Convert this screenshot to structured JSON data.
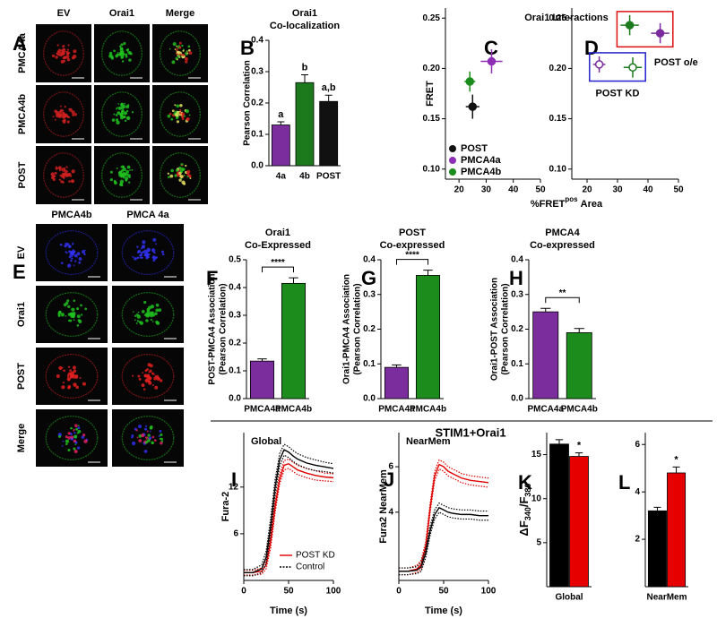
{
  "panel_letters": [
    "A",
    "B",
    "C",
    "D",
    "E",
    "F",
    "G",
    "H",
    "I",
    "J",
    "K",
    "L"
  ],
  "image_panels": [
    {
      "columns": [
        "EV",
        "Orai1",
        "Merge"
      ],
      "rows": [
        "PMCA4a",
        "PMCA4b",
        "POST"
      ]
    },
    {
      "columns": [
        "PMCA4b",
        "PMCA 4a"
      ],
      "rows": [
        "EV",
        "Orai1",
        "POST",
        "Merge"
      ]
    }
  ],
  "figure_label": "STIM1+Orai1",
  "chart_data": [
    {
      "type": "bar",
      "title": "Orai1",
      "subtitle": "Co-localization",
      "y_label": "Pearson Correlation",
      "categories": [
        "4a",
        "4b",
        "POST"
      ],
      "values": [
        0.13,
        0.265,
        0.205
      ],
      "errors": [
        0.01,
        0.025,
        0.02
      ],
      "colors": [
        "#7b2d9e",
        "#1c7a1c",
        "#111111"
      ],
      "annotations": [
        "a",
        "b",
        "a,b"
      ],
      "ylim": [
        0,
        0.4
      ],
      "yticks": [
        {
          "value": 0,
          "label": "0.0"
        },
        0.1,
        0.2,
        0.3,
        0.4
      ]
    },
    {
      "type": "scatter",
      "title": "Orai1 Interactions",
      "x_label": "%FRET",
      "x_label_sup": "pos",
      "x_label_end": "Area",
      "y_label": "FRET",
      "xlim": [
        15,
        50
      ],
      "xticks": [
        20,
        30,
        40,
        50
      ],
      "ylim": [
        0.09,
        0.26
      ],
      "yticks": [
        {
          "value": 0.1,
          "label": "0.10"
        },
        0.15,
        {
          "value": 0.2,
          "label": "0.20"
        },
        0.25
      ],
      "legend": "lower left",
      "series": [
        {
          "name": "POST",
          "color": "#111111",
          "x": [
            25
          ],
          "values": [
            0.162
          ],
          "xerr": [
            2.5
          ],
          "errors": [
            0.012
          ]
        },
        {
          "name": "PMCA4a",
          "color": "#8e2fb8",
          "x": [
            32
          ],
          "values": [
            0.207
          ],
          "xerr": [
            4
          ],
          "errors": [
            0.012
          ]
        },
        {
          "name": "PMCA4b",
          "color": "#1c8c1c",
          "x": [
            24
          ],
          "values": [
            0.187
          ],
          "xerr": [
            2
          ],
          "errors": [
            0.01
          ]
        }
      ]
    },
    {
      "type": "scatter",
      "xlim": [
        15,
        50
      ],
      "xticks": [
        20,
        30,
        40,
        50
      ],
      "ylim": [
        0.09,
        0.26
      ],
      "yticks": [
        {
          "value": 0.1,
          "label": "0.10"
        },
        0.15,
        {
          "value": 0.2,
          "label": "0.20"
        },
        0.25
      ],
      "series": [
        {
          "color": "#7a2a9e",
          "x": [
            24,
            44
          ],
          "values": [
            0.204,
            0.235
          ],
          "xerr": [
            2,
            3
          ],
          "errors": [
            0.008,
            0.01
          ],
          "filled": [
            false,
            true
          ]
        },
        {
          "color": "#1c7a1c",
          "x": [
            35,
            34
          ],
          "values": [
            0.201,
            0.243
          ],
          "xerr": [
            3,
            3
          ],
          "errors": [
            0.01,
            0.01
          ],
          "filled": [
            false,
            true
          ]
        }
      ],
      "groups": [
        {
          "label": "POST KD",
          "color": "#2222cc"
        },
        {
          "label": "POST o/e",
          "color": "#dd1111"
        }
      ]
    },
    {
      "type": "bar",
      "title": "Orai1",
      "subtitle": "Co-Expressed",
      "y_label": "POST-PMCA4 Association",
      "y_label_2": "(Pearson Correlation)",
      "categories": [
        "PMCA4a",
        "PMCA4b"
      ],
      "values": [
        0.135,
        0.415
      ],
      "errors": [
        0.008,
        0.02
      ],
      "colors": [
        "#7b2d9e",
        "#1c8c1c"
      ],
      "significance": "****",
      "ylim": [
        0,
        0.5
      ],
      "yticks": [
        {
          "value": 0,
          "label": "0.0"
        },
        0.1,
        0.2,
        0.3,
        0.4,
        0.5
      ]
    },
    {
      "type": "bar",
      "title": "POST",
      "subtitle": "Co-expressed",
      "y_label": "Orai1-PMCA4 Association",
      "y_label_2": "(Pearson Correlation)",
      "categories": [
        "PMCA4a",
        "PMCA4b"
      ],
      "values": [
        0.09,
        0.355
      ],
      "errors": [
        0.007,
        0.015
      ],
      "colors": [
        "#7b2d9e",
        "#1c8c1c"
      ],
      "significance": "****",
      "ylim": [
        0,
        0.4
      ],
      "yticks": [
        {
          "value": 0,
          "label": "0.0"
        },
        0.1,
        0.2,
        0.3,
        0.4
      ]
    },
    {
      "type": "bar",
      "title": "PMCA4",
      "subtitle": "Co-expressed",
      "y_label": "Orai1-POST Association",
      "y_label_2": "(Pearson Correlation)",
      "categories": [
        "PMCA4a",
        "PMCA4b"
      ],
      "values": [
        0.25,
        0.19
      ],
      "errors": [
        0.01,
        0.012
      ],
      "colors": [
        "#7b2d9e",
        "#1c8c1c"
      ],
      "significance": "**",
      "ylim": [
        0,
        0.4
      ],
      "yticks": [
        {
          "value": 0,
          "label": "0.0"
        },
        0.1,
        0.2,
        0.3,
        0.4
      ]
    },
    {
      "type": "line",
      "title": "Global",
      "y_label": "Fura-2",
      "x_label": "Time (s)",
      "legend": "lower right",
      "xlim": [
        0,
        100
      ],
      "xticks": [
        0,
        50,
        100
      ],
      "ylim": [
        0,
        19
      ],
      "yticks": [
        6,
        12
      ],
      "x": [
        0,
        10,
        20,
        25,
        30,
        35,
        40,
        45,
        50,
        55,
        60,
        70,
        80,
        90,
        100
      ],
      "series": [
        {
          "name": "POST  KD",
          "color": "#e00000",
          "values": [
            1,
            1,
            1.2,
            2,
            5,
            9.5,
            13,
            14.8,
            15,
            14.6,
            14.2,
            13.8,
            13.5,
            13.3,
            13.2
          ],
          "errors": [
            0.3,
            0.3,
            0.4,
            0.5,
            0.8,
            0.8,
            0.6,
            0.6,
            0.6,
            0.6,
            0.6,
            0.6,
            0.6,
            0.5,
            0.5
          ]
        },
        {
          "name": "Control",
          "color": "#000000",
          "values": [
            1,
            1,
            1.5,
            3,
            7,
            12,
            15.5,
            16.8,
            16.5,
            16,
            15.6,
            15.1,
            14.8,
            14.6,
            14.4
          ],
          "errors": [
            0.4,
            0.4,
            0.5,
            0.8,
            1,
            1,
            0.8,
            0.7,
            0.7,
            0.7,
            0.7,
            0.7,
            0.7,
            0.6,
            0.6
          ]
        }
      ]
    },
    {
      "type": "line",
      "title": "NearMem",
      "y_label": "Fura2 NearMem",
      "x_label": "Time (s)",
      "xlim": [
        0,
        100
      ],
      "xticks": [
        0,
        50,
        100
      ],
      "ylim": [
        1,
        7.5
      ],
      "yticks": [
        4,
        6
      ],
      "x": [
        0,
        10,
        20,
        25,
        30,
        35,
        40,
        45,
        50,
        55,
        60,
        70,
        80,
        90,
        100
      ],
      "series": [
        {
          "color": "#e00000",
          "values": [
            1.4,
            1.4,
            1.5,
            1.7,
            2.5,
            4.2,
            5.6,
            6.1,
            6,
            5.8,
            5.7,
            5.5,
            5.4,
            5.35,
            5.3
          ],
          "errors": [
            0.15,
            0.15,
            0.15,
            0.2,
            0.2,
            0.2,
            0.2,
            0.2,
            0.2,
            0.2,
            0.2,
            0.2,
            0.2,
            0.2,
            0.2
          ]
        },
        {
          "color": "#000000",
          "values": [
            1.4,
            1.4,
            1.45,
            1.6,
            2.2,
            3.2,
            3.9,
            4.2,
            4.1,
            4,
            3.95,
            3.9,
            3.9,
            3.85,
            3.85
          ],
          "errors": [
            0.15,
            0.15,
            0.15,
            0.2,
            0.2,
            0.2,
            0.2,
            0.2,
            0.2,
            0.2,
            0.2,
            0.2,
            0.2,
            0.2,
            0.2
          ]
        }
      ]
    },
    {
      "type": "bar",
      "y_label_parts": [
        "ΔF",
        "340",
        "/F",
        "380"
      ],
      "categories": [
        "Global"
      ],
      "series": [
        {
          "color": "#000000",
          "values": [
            16.2
          ],
          "errors": [
            0.5
          ]
        },
        {
          "color": "#e60000",
          "values": [
            14.8
          ],
          "errors": [
            0.4
          ],
          "annotation": "*"
        }
      ],
      "ylim": [
        0,
        17.5
      ],
      "yticks": [
        5,
        10,
        15
      ]
    },
    {
      "type": "bar",
      "categories": [
        "NearMem"
      ],
      "series": [
        {
          "color": "#000000",
          "values": [
            3.2
          ],
          "errors": [
            0.15
          ]
        },
        {
          "color": "#e60000",
          "values": [
            4.8
          ],
          "errors": [
            0.25
          ],
          "annotation": "*"
        }
      ],
      "ylim": [
        0,
        6.5
      ],
      "yticks": [
        2,
        4,
        6
      ]
    }
  ]
}
